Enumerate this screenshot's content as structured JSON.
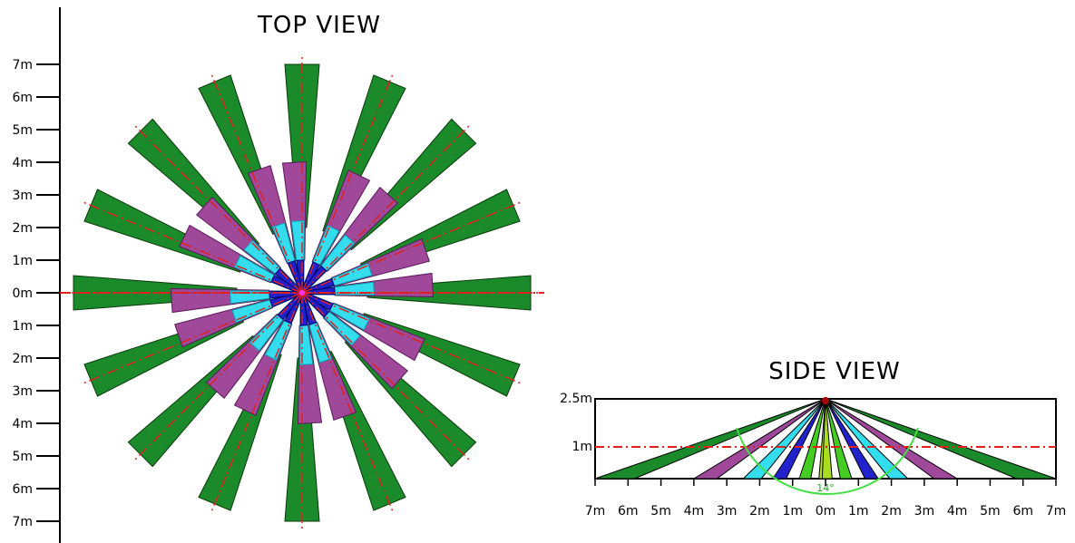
{
  "top_view": {
    "title": "TOP  VIEW",
    "y_axis_labels": [
      "7m",
      "6m",
      "5m",
      "4m",
      "3m",
      "2m",
      "1m",
      "0m",
      "1m",
      "2m",
      "3m",
      "4m",
      "5m",
      "6m",
      "7m"
    ],
    "beam_count": 16,
    "zones": [
      {
        "zone": "far",
        "inner_m": 2.0,
        "outer_m": 7.0,
        "color": "#1a8a2a"
      },
      {
        "zone": "middle",
        "inner_m": 1.0,
        "outer_m": 4.0,
        "color": "#a0489a"
      },
      {
        "zone": "near",
        "inner_m": 0.3,
        "outer_m": 2.2,
        "color": "#33ddee"
      },
      {
        "zone": "center",
        "inner_m": 0.05,
        "outer_m": 1.0,
        "color": "#2222cc"
      }
    ],
    "axis_line_color": "#e0201c"
  },
  "side_view": {
    "title": "SIDE  VIEW",
    "height_labels": [
      "2.5m",
      "1m"
    ],
    "x_labels": [
      "7m",
      "6m",
      "5m",
      "4m",
      "3m",
      "2m",
      "1m",
      "0m",
      "1m",
      "2m",
      "3m",
      "4m",
      "5m",
      "6m",
      "7m"
    ],
    "angle_label": "14°",
    "reference_line_color": "#e0201c"
  }
}
